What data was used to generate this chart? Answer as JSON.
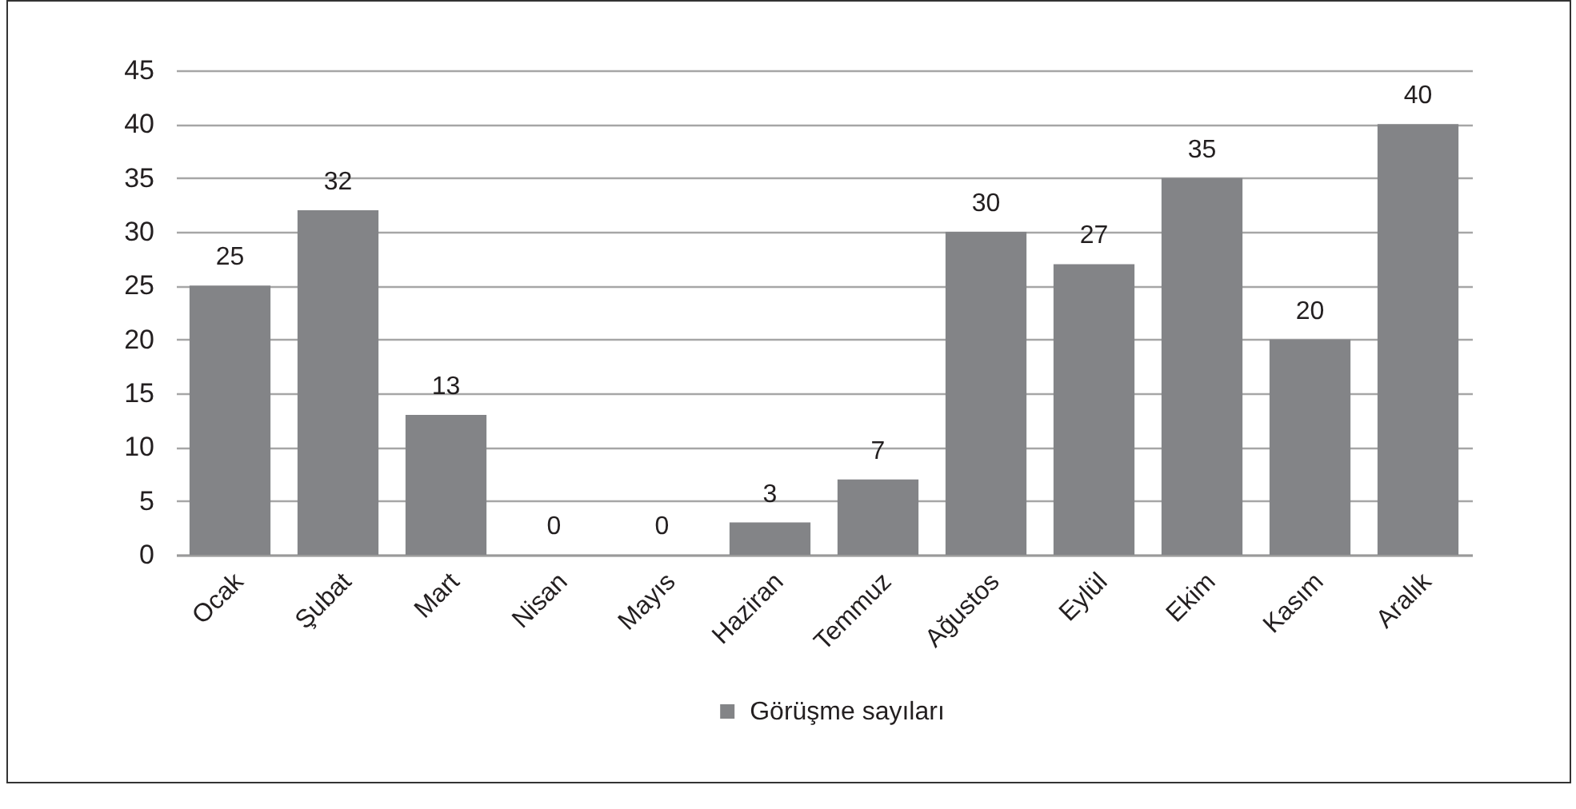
{
  "chart_data": {
    "type": "bar",
    "categories": [
      "Ocak",
      "Şubat",
      "Mart",
      "Nisan",
      "Mayıs",
      "Haziran",
      "Temmuz",
      "Ağustos",
      "Eylül",
      "Ekim",
      "Kasım",
      "Aralık"
    ],
    "series": [
      {
        "name": "Görüşme sayıları",
        "color": "#838487",
        "values": [
          25,
          32,
          13,
          0,
          0,
          3,
          7,
          30,
          27,
          35,
          20,
          40
        ]
      }
    ],
    "ylim": [
      0,
      45
    ],
    "yticks": [
      0,
      5,
      10,
      15,
      20,
      25,
      30,
      35,
      40,
      45
    ],
    "grid": "y",
    "legend": "bottom",
    "data_labels": true
  }
}
